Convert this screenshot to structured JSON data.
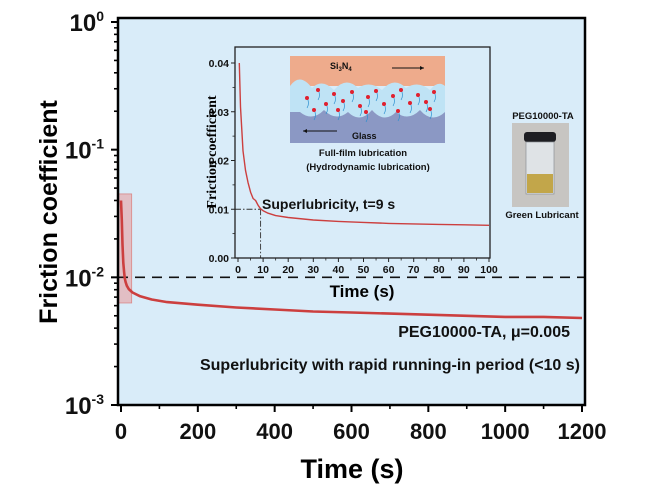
{
  "chart_data": [
    {
      "id": "main",
      "type": "line",
      "xlabel": "Time (s)",
      "ylabel": "Friction coefficient",
      "xlim": [
        -10,
        1200
      ],
      "ylim": [
        0.001,
        1
      ],
      "yscale": "log",
      "x_ticks": [
        0,
        200,
        400,
        600,
        800,
        1000,
        1200
      ],
      "y_ticks": [
        {
          "value": 1,
          "base": "10",
          "exp": "0"
        },
        {
          "value": 0.1,
          "base": "10",
          "exp": "-1"
        },
        {
          "value": 0.01,
          "base": "10",
          "exp": "-2"
        },
        {
          "value": 0.001,
          "base": "10",
          "exp": "-3"
        }
      ],
      "background": "#d9ecf9",
      "series": [
        {
          "name": "PEG10000-TA",
          "color": "#cc3f3f",
          "x": [
            0,
            2,
            4,
            6,
            8,
            10,
            12,
            15,
            20,
            30,
            50,
            80,
            120,
            200,
            300,
            400,
            500,
            600,
            700,
            800,
            900,
            1000,
            1100,
            1200
          ],
          "y": [
            0.04,
            0.028,
            0.018,
            0.013,
            0.011,
            0.0098,
            0.0092,
            0.0086,
            0.0081,
            0.0076,
            0.0071,
            0.0067,
            0.0064,
            0.0061,
            0.0058,
            0.0056,
            0.0054,
            0.0053,
            0.0052,
            0.0051,
            0.005,
            0.0049,
            0.0049,
            0.0048
          ]
        }
      ],
      "reference_line": {
        "y": 0.01,
        "style": "dashed",
        "color": "#000000"
      },
      "highlight_region": {
        "x": [
          0,
          20
        ],
        "y": [
          0.0063,
          0.045
        ],
        "color": "#e8a0a0"
      },
      "annotations": [
        {
          "text": "PEG10000-TA, μ=0.005",
          "color": "#cc3f3f"
        },
        {
          "text": "Superlubricity with rapid running-in period (<10 s)",
          "color": "#cc3f3f"
        }
      ]
    },
    {
      "id": "inset",
      "type": "line",
      "xlabel": "Time (s)",
      "ylabel": "Friction coefficient",
      "xlim": [
        0,
        100
      ],
      "ylim": [
        0,
        0.04
      ],
      "x_ticks": [
        0,
        10,
        20,
        30,
        40,
        50,
        60,
        70,
        80,
        90,
        100
      ],
      "y_ticks": [
        "0.00",
        "0.01",
        "0.02",
        "0.03",
        "0.04"
      ],
      "series": [
        {
          "name": "PEG10000-TA (0-100 s)",
          "color": "#cc3f3f",
          "x": [
            0.5,
            1,
            2,
            3,
            4,
            5,
            6,
            7,
            8,
            9,
            10,
            12,
            15,
            20,
            30,
            40,
            50,
            60,
            70,
            80,
            90,
            100
          ],
          "y": [
            0.04,
            0.031,
            0.022,
            0.018,
            0.0155,
            0.0135,
            0.0122,
            0.0118,
            0.0108,
            0.0101,
            0.0097,
            0.0092,
            0.0087,
            0.0083,
            0.0078,
            0.0075,
            0.0073,
            0.0071,
            0.007,
            0.0069,
            0.0068,
            0.0067
          ]
        }
      ],
      "guide": {
        "x": 9,
        "y": 0.01,
        "style": "dash-dot"
      },
      "annotations": [
        {
          "text": "Superlubricity, t=9 s",
          "color": "#cc3f3f"
        }
      ]
    }
  ],
  "schematic": {
    "top_label": "Si3N4",
    "top_label_main": "Si",
    "top_label_sub1": "3",
    "top_label_mid": "N",
    "top_label_sub2": "4",
    "bottom_label": "Glass",
    "caption_line1": "Full-film lubrication",
    "caption_line2": "(Hydrodynamic  lubrication)",
    "top_color": "#eeab8c",
    "bottom_color": "#8b98c4",
    "film_color": "#bfe3f5",
    "caption_line1_color": "#e0202e"
  },
  "photo": {
    "title": "PEG10000-TA",
    "title_color": "#e0202e",
    "caption": "Green Lubricant",
    "caption_color": "#1a9b4e"
  }
}
